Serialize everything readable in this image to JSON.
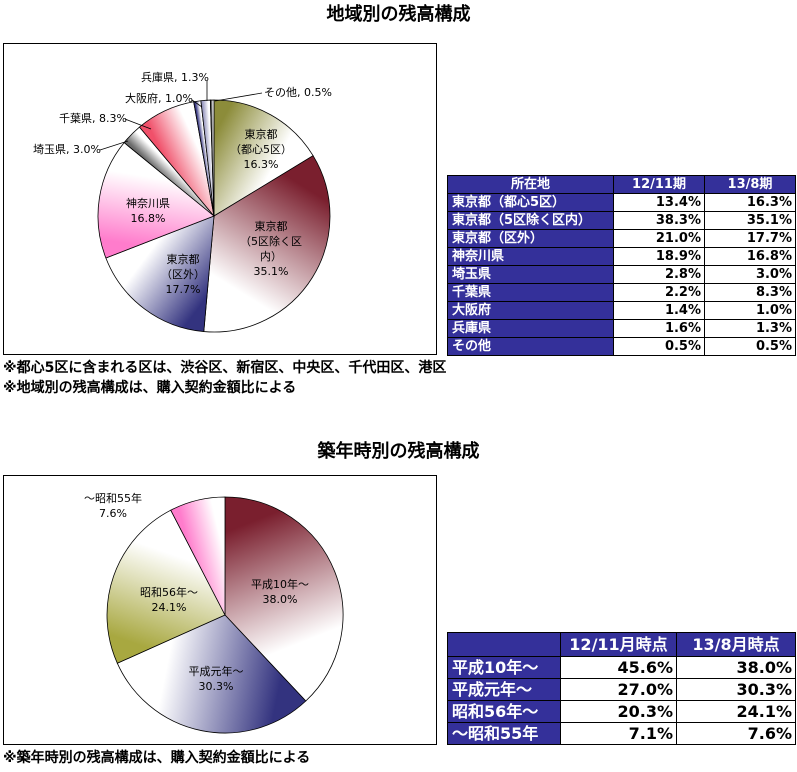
{
  "theme": {
    "table_header_bg": "#34309a",
    "table_header_text": "#ffffff"
  },
  "region": {
    "notes": [
      "※都心5区に含まれる区は、渋谷区、新宿区、中央区、千代田区、港区",
      "※地域別の残高構成は、購入契約金額比による"
    ],
    "table": {
      "headers": [
        "所在地",
        "12/11期",
        "13/8期"
      ],
      "rows": [
        [
          "東京都（都心5区）",
          "13.4%",
          "16.3%"
        ],
        [
          "東京都（5区除く区内）",
          "38.3%",
          "35.1%"
        ],
        [
          "東京都（区外）",
          "21.0%",
          "17.7%"
        ],
        [
          "神奈川県",
          "18.9%",
          "16.8%"
        ],
        [
          "埼玉県",
          "2.8%",
          "3.0%"
        ],
        [
          "千葉県",
          "2.2%",
          "8.3%"
        ],
        [
          "大阪府",
          "1.4%",
          "1.0%"
        ],
        [
          "兵庫県",
          "1.6%",
          "1.3%"
        ],
        [
          "その他",
          "0.5%",
          "0.5%"
        ]
      ]
    }
  },
  "age": {
    "notes": [
      "※築年時別の残高構成は、購入契約金額比による"
    ],
    "table": {
      "headers": [
        "",
        "12/11月時点",
        "13/8月時点"
      ],
      "rows": [
        [
          "平成10年～",
          "45.6%",
          "38.0%"
        ],
        [
          "平成元年～",
          "27.0%",
          "30.3%"
        ],
        [
          "昭和56年～",
          "20.3%",
          "24.1%"
        ],
        [
          "～昭和55年",
          "7.1%",
          "7.6%"
        ]
      ]
    }
  },
  "chart_data": [
    {
      "type": "pie",
      "title": "地域別の残高構成",
      "slices": [
        {
          "label": [
            "東京都",
            "（都心5区）"
          ],
          "value": 16.3,
          "color": "#8c8c3a"
        },
        {
          "label": [
            "東京都",
            "（5区除く区",
            "内）"
          ],
          "value": 35.1,
          "color": "#7a1f2e"
        },
        {
          "label": [
            "東京都",
            "（区外）"
          ],
          "value": 17.7,
          "color": "#33337f"
        },
        {
          "label": [
            "神奈川県"
          ],
          "value": 16.8,
          "color": "#ff7ccc"
        },
        {
          "label": [
            "埼玉県"
          ],
          "value": 3.0,
          "color": "#6b6b6b"
        },
        {
          "label": [
            "千葉県"
          ],
          "value": 8.3,
          "color": "#f0506a"
        },
        {
          "label": [
            "大阪府"
          ],
          "value": 1.0,
          "color": "#33337f"
        },
        {
          "label": [
            "兵庫県"
          ],
          "value": 1.3,
          "color": "#9a9ac0"
        },
        {
          "label": [
            "その他"
          ],
          "value": 0.5,
          "color": "#333333"
        }
      ]
    },
    {
      "type": "pie",
      "title": "築年時別の残高構成",
      "slices": [
        {
          "label": [
            "平成10年～"
          ],
          "value": 38.0,
          "color": "#7a1f2e"
        },
        {
          "label": [
            "平成元年～"
          ],
          "value": 30.3,
          "color": "#33337f"
        },
        {
          "label": [
            "昭和56年～"
          ],
          "value": 24.1,
          "color": "#a8a840"
        },
        {
          "label": [
            "～昭和55年"
          ],
          "value": 7.6,
          "color": "#ff7ccc"
        }
      ]
    }
  ]
}
